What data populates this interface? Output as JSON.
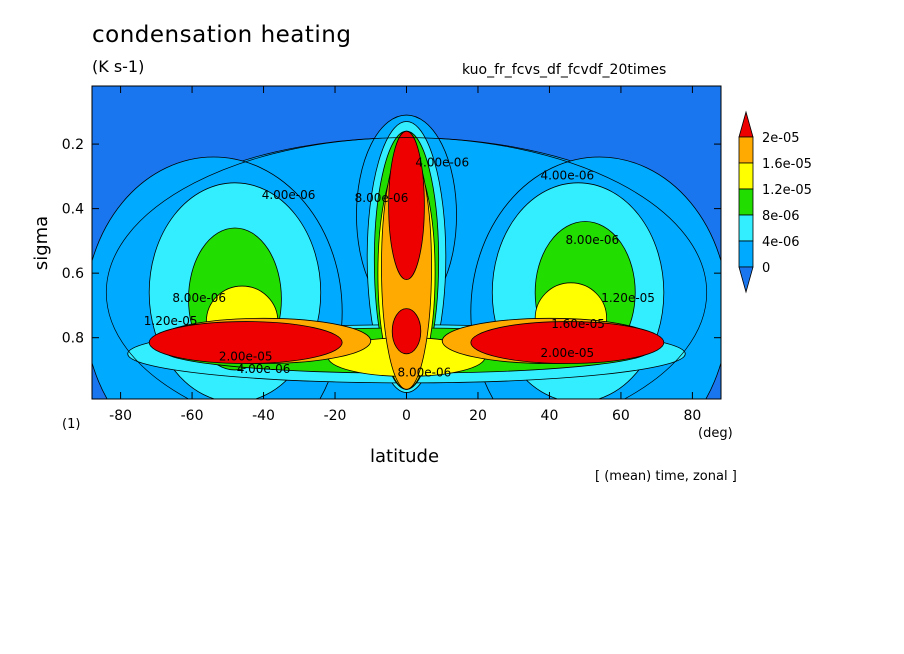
{
  "header": {
    "title": "condensation heating",
    "units": "(K s-1)",
    "experiment": "kuo_fr_fcvs_df_fcvdf_20times",
    "left_note": "(1)",
    "x_unit": "(deg)",
    "x_label": "latitude",
    "operation_note": "[ (mean) time, zonal ]"
  },
  "chart_data": {
    "type": "heatmap",
    "title": "condensation heating",
    "subtitle": "(K s-1)",
    "xlabel": "latitude",
    "ylabel": "sigma",
    "xlim": [
      -88,
      88
    ],
    "ylim": [
      0.99,
      0.02
    ],
    "x_ticks": [
      -80,
      -60,
      -40,
      -20,
      0,
      20,
      40,
      60,
      80
    ],
    "y_ticks": [
      0.2,
      0.4,
      0.6,
      0.8
    ],
    "colorbar": {
      "labels": [
        "2e-05",
        "1.6e-05",
        "1.2e-05",
        "8e-06",
        "4e-06",
        "0"
      ],
      "levels": [
        0,
        4e-06,
        8e-06,
        1.2e-05,
        1.6e-05,
        2e-05
      ],
      "colors": [
        "#1a76ee",
        "#00aaff",
        "#33eeff",
        "#22dd00",
        "#ffff00",
        "#ffaa00",
        "#ee0000"
      ]
    },
    "contour_labels": [
      {
        "text": "4.00e-06",
        "lat": -33,
        "sigma": 0.37
      },
      {
        "text": "4.00e-06",
        "lat": 45,
        "sigma": 0.31
      },
      {
        "text": "8.00e-06",
        "lat": 52,
        "sigma": 0.51
      },
      {
        "text": "1.20e-05",
        "lat": 62,
        "sigma": 0.69
      },
      {
        "text": "1.60e-05",
        "lat": 48,
        "sigma": 0.77
      },
      {
        "text": "2.00e-05",
        "lat": 45,
        "sigma": 0.86
      },
      {
        "text": "2.00e-05",
        "lat": -45,
        "sigma": 0.87
      },
      {
        "text": "4.00e-06",
        "lat": -40,
        "sigma": 0.91
      },
      {
        "text": "8.00e-06",
        "lat": 5,
        "sigma": 0.92
      },
      {
        "text": "8.00e-06",
        "lat": -58,
        "sigma": 0.69
      },
      {
        "text": "1.20e-05",
        "lat": -66,
        "sigma": 0.76
      },
      {
        "text": "8.00e-06",
        "lat": -7,
        "sigma": 0.38
      },
      {
        "text": "4.00e-06",
        "lat": 10,
        "sigma": 0.27
      }
    ]
  }
}
